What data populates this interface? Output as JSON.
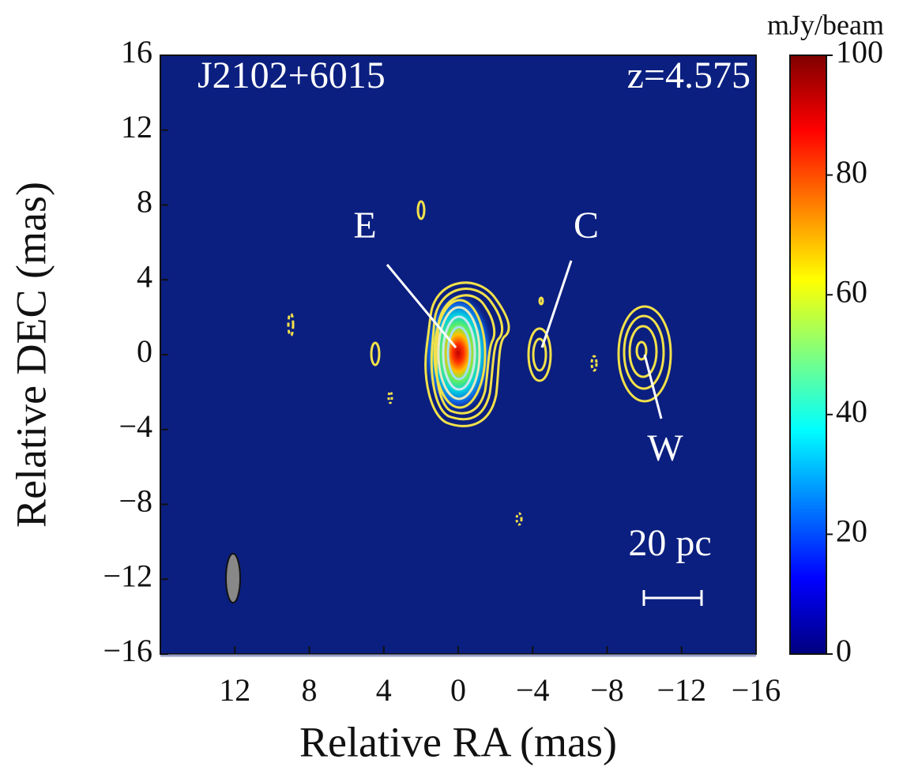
{
  "chart_data": {
    "type": "image",
    "title": "J2102+6015",
    "annotations": [
      "z=4.575",
      "E",
      "C",
      "W",
      "20 pc"
    ],
    "xlabel": "Relative RA (mas)",
    "ylabel": "Relative DEC (mas)",
    "xlim": [
      16,
      -16
    ],
    "ylim": [
      -16,
      16
    ],
    "xticks": [
      12,
      8,
      4,
      0,
      {
        "value": -4,
        "label": "−4"
      },
      {
        "value": -8,
        "label": "−8"
      },
      {
        "value": -12,
        "label": "−12"
      },
      {
        "value": -16,
        "label": "−16"
      }
    ],
    "yticks": [
      {
        "value": -16,
        "label": "−16"
      },
      {
        "value": -12,
        "label": "−12"
      },
      {
        "value": -8,
        "label": "−8"
      },
      {
        "value": -4,
        "label": "−4"
      },
      0,
      4,
      8,
      12,
      16
    ],
    "colorbar": {
      "label": "mJy/beam",
      "lim": [
        0,
        100
      ],
      "ticks": [
        0,
        20,
        40,
        60,
        80,
        100
      ],
      "colormap": "jet"
    },
    "background": "#0b1f80",
    "contour_color": "#f2e14a"
  }
}
